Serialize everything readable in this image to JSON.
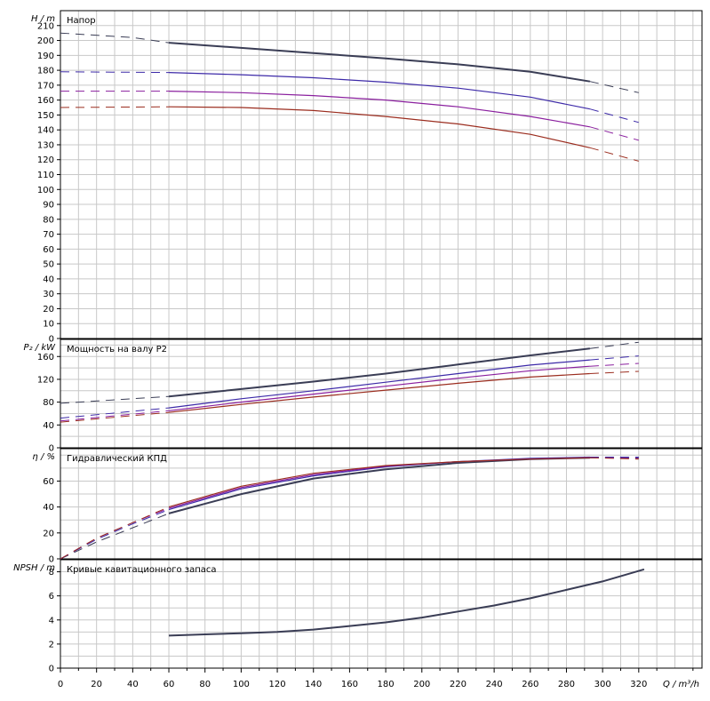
{
  "colors": {
    "curve1": "#3a3d55",
    "curve2": "#3d2aa8",
    "curve3": "#8a1f9e",
    "curve4": "#9b2d1f",
    "grid": "#c8c8c8"
  },
  "xaxis": {
    "label": "Q / m³/h",
    "ticks": [
      "0",
      "20",
      "40",
      "60",
      "80",
      "100",
      "120",
      "140",
      "160",
      "180",
      "200",
      "220",
      "240",
      "260",
      "280",
      "300",
      "320"
    ]
  },
  "panels": {
    "head": {
      "title": "Напор",
      "ylabel": "H / m"
    },
    "power": {
      "title": "Мощность на валу P2",
      "ylabel": "P₂ / kW"
    },
    "eff": {
      "title": "Гидравлический КПД",
      "ylabel": "η / %"
    },
    "npsh": {
      "title": "Кривые кавитационного запаса",
      "ylabel": "NPSH / m"
    }
  },
  "chart_data": [
    {
      "type": "line",
      "id": "head",
      "title": "Напор",
      "ylabel": "H / m",
      "xlabel": "Q / m³/h",
      "xlim": [
        0,
        355
      ],
      "ylim": [
        0,
        220
      ],
      "yticks": [
        0,
        10,
        20,
        30,
        40,
        50,
        60,
        70,
        80,
        90,
        100,
        110,
        120,
        130,
        140,
        150,
        160,
        170,
        180,
        190,
        200,
        210
      ],
      "grid": true,
      "series": [
        {
          "x": [
            0,
            40,
            60,
            100,
            140,
            180,
            220,
            260,
            293,
            320
          ],
          "y": [
            205,
            202,
            198.5,
            195,
            191.5,
            188,
            184,
            179,
            172.5,
            165
          ],
          "solid_from": 60,
          "solid_to": 293
        },
        {
          "x": [
            0,
            60,
            100,
            140,
            180,
            220,
            260,
            293,
            320
          ],
          "y": [
            179,
            178.5,
            177,
            175,
            172,
            168,
            162,
            154,
            145
          ],
          "solid_from": 60,
          "solid_to": 293
        },
        {
          "x": [
            0,
            60,
            100,
            140,
            180,
            220,
            260,
            293,
            320
          ],
          "y": [
            166,
            166,
            165,
            163,
            160,
            155.5,
            149,
            142,
            133
          ],
          "solid_from": 60,
          "solid_to": 293
        },
        {
          "x": [
            0,
            60,
            100,
            140,
            180,
            220,
            260,
            293,
            320
          ],
          "y": [
            155,
            155.5,
            155,
            153,
            149,
            144,
            137,
            128,
            119
          ],
          "solid_from": 60,
          "solid_to": 293
        }
      ]
    },
    {
      "type": "line",
      "id": "power",
      "title": "Мощность на валу P2",
      "ylabel": "P₂ / kW",
      "xlabel": "Q / m³/h",
      "xlim": [
        0,
        355
      ],
      "ylim": [
        0,
        190
      ],
      "yticks": [
        0,
        40,
        80,
        120,
        160
      ],
      "grid": true,
      "series": [
        {
          "x": [
            0,
            60,
            100,
            140,
            180,
            220,
            260,
            293,
            320
          ],
          "y": [
            78,
            90,
            103,
            116,
            130,
            146,
            162,
            174,
            185
          ],
          "solid_from": 60,
          "solid_to": 293
        },
        {
          "x": [
            0,
            60,
            100,
            140,
            180,
            220,
            260,
            293,
            320
          ],
          "y": [
            52,
            70,
            86,
            100,
            115,
            130,
            145,
            154,
            161
          ],
          "solid_from": 60,
          "solid_to": 293
        },
        {
          "x": [
            0,
            60,
            100,
            140,
            180,
            220,
            260,
            293,
            320
          ],
          "y": [
            47,
            65,
            80,
            94,
            108,
            122,
            135,
            143,
            148
          ],
          "solid_from": 60,
          "solid_to": 293
        },
        {
          "x": [
            0,
            60,
            100,
            140,
            180,
            220,
            260,
            293,
            320
          ],
          "y": [
            45,
            62,
            76,
            89,
            101,
            113,
            124,
            130,
            134
          ],
          "solid_from": 60,
          "solid_to": 293
        }
      ]
    },
    {
      "type": "line",
      "id": "eff",
      "title": "Гидравлический КПД",
      "ylabel": "η / %",
      "xlabel": "Q / m³/h",
      "xlim": [
        0,
        355
      ],
      "ylim": [
        0,
        85
      ],
      "yticks": [
        0,
        20,
        40,
        60
      ],
      "grid": true,
      "series": [
        {
          "x": [
            0,
            20,
            40,
            60,
            100,
            140,
            180,
            220,
            260,
            293,
            320
          ],
          "y": [
            0,
            13,
            24,
            35,
            50,
            62,
            69,
            74,
            77,
            78,
            78
          ],
          "solid_from": 60,
          "solid_to": 293
        },
        {
          "x": [
            0,
            20,
            40,
            60,
            100,
            140,
            180,
            220,
            260,
            293,
            320
          ],
          "y": [
            0,
            15,
            27,
            38,
            54,
            64,
            71,
            75,
            77.5,
            78.5,
            78.5
          ],
          "solid_from": 60,
          "solid_to": 293
        },
        {
          "x": [
            0,
            20,
            40,
            60,
            100,
            140,
            180,
            220,
            260,
            293,
            320
          ],
          "y": [
            0,
            16,
            28,
            39,
            55,
            65,
            71.5,
            75,
            77,
            78,
            77.5
          ],
          "solid_from": 60,
          "solid_to": 293
        },
        {
          "x": [
            0,
            20,
            40,
            60,
            100,
            140,
            180,
            220,
            260,
            293,
            320
          ],
          "y": [
            0,
            16,
            28,
            40,
            56,
            66,
            72,
            75,
            77,
            78,
            77
          ],
          "solid_from": 60,
          "solid_to": 293
        }
      ]
    },
    {
      "type": "line",
      "id": "npsh",
      "title": "Кривые кавитационного запаса",
      "ylabel": "NPSH / m",
      "xlabel": "Q / m³/h",
      "xlim": [
        0,
        355
      ],
      "ylim": [
        0,
        9
      ],
      "yticks": [
        0,
        2,
        4,
        6,
        8
      ],
      "grid": true,
      "series": [
        {
          "x": [
            60,
            80,
            100,
            120,
            140,
            160,
            180,
            200,
            220,
            240,
            260,
            280,
            300,
            323
          ],
          "y": [
            2.7,
            2.8,
            2.9,
            3.0,
            3.2,
            3.5,
            3.8,
            4.2,
            4.7,
            5.2,
            5.8,
            6.5,
            7.2,
            8.2
          ],
          "solid_from": 60,
          "solid_to": 323
        }
      ]
    }
  ]
}
